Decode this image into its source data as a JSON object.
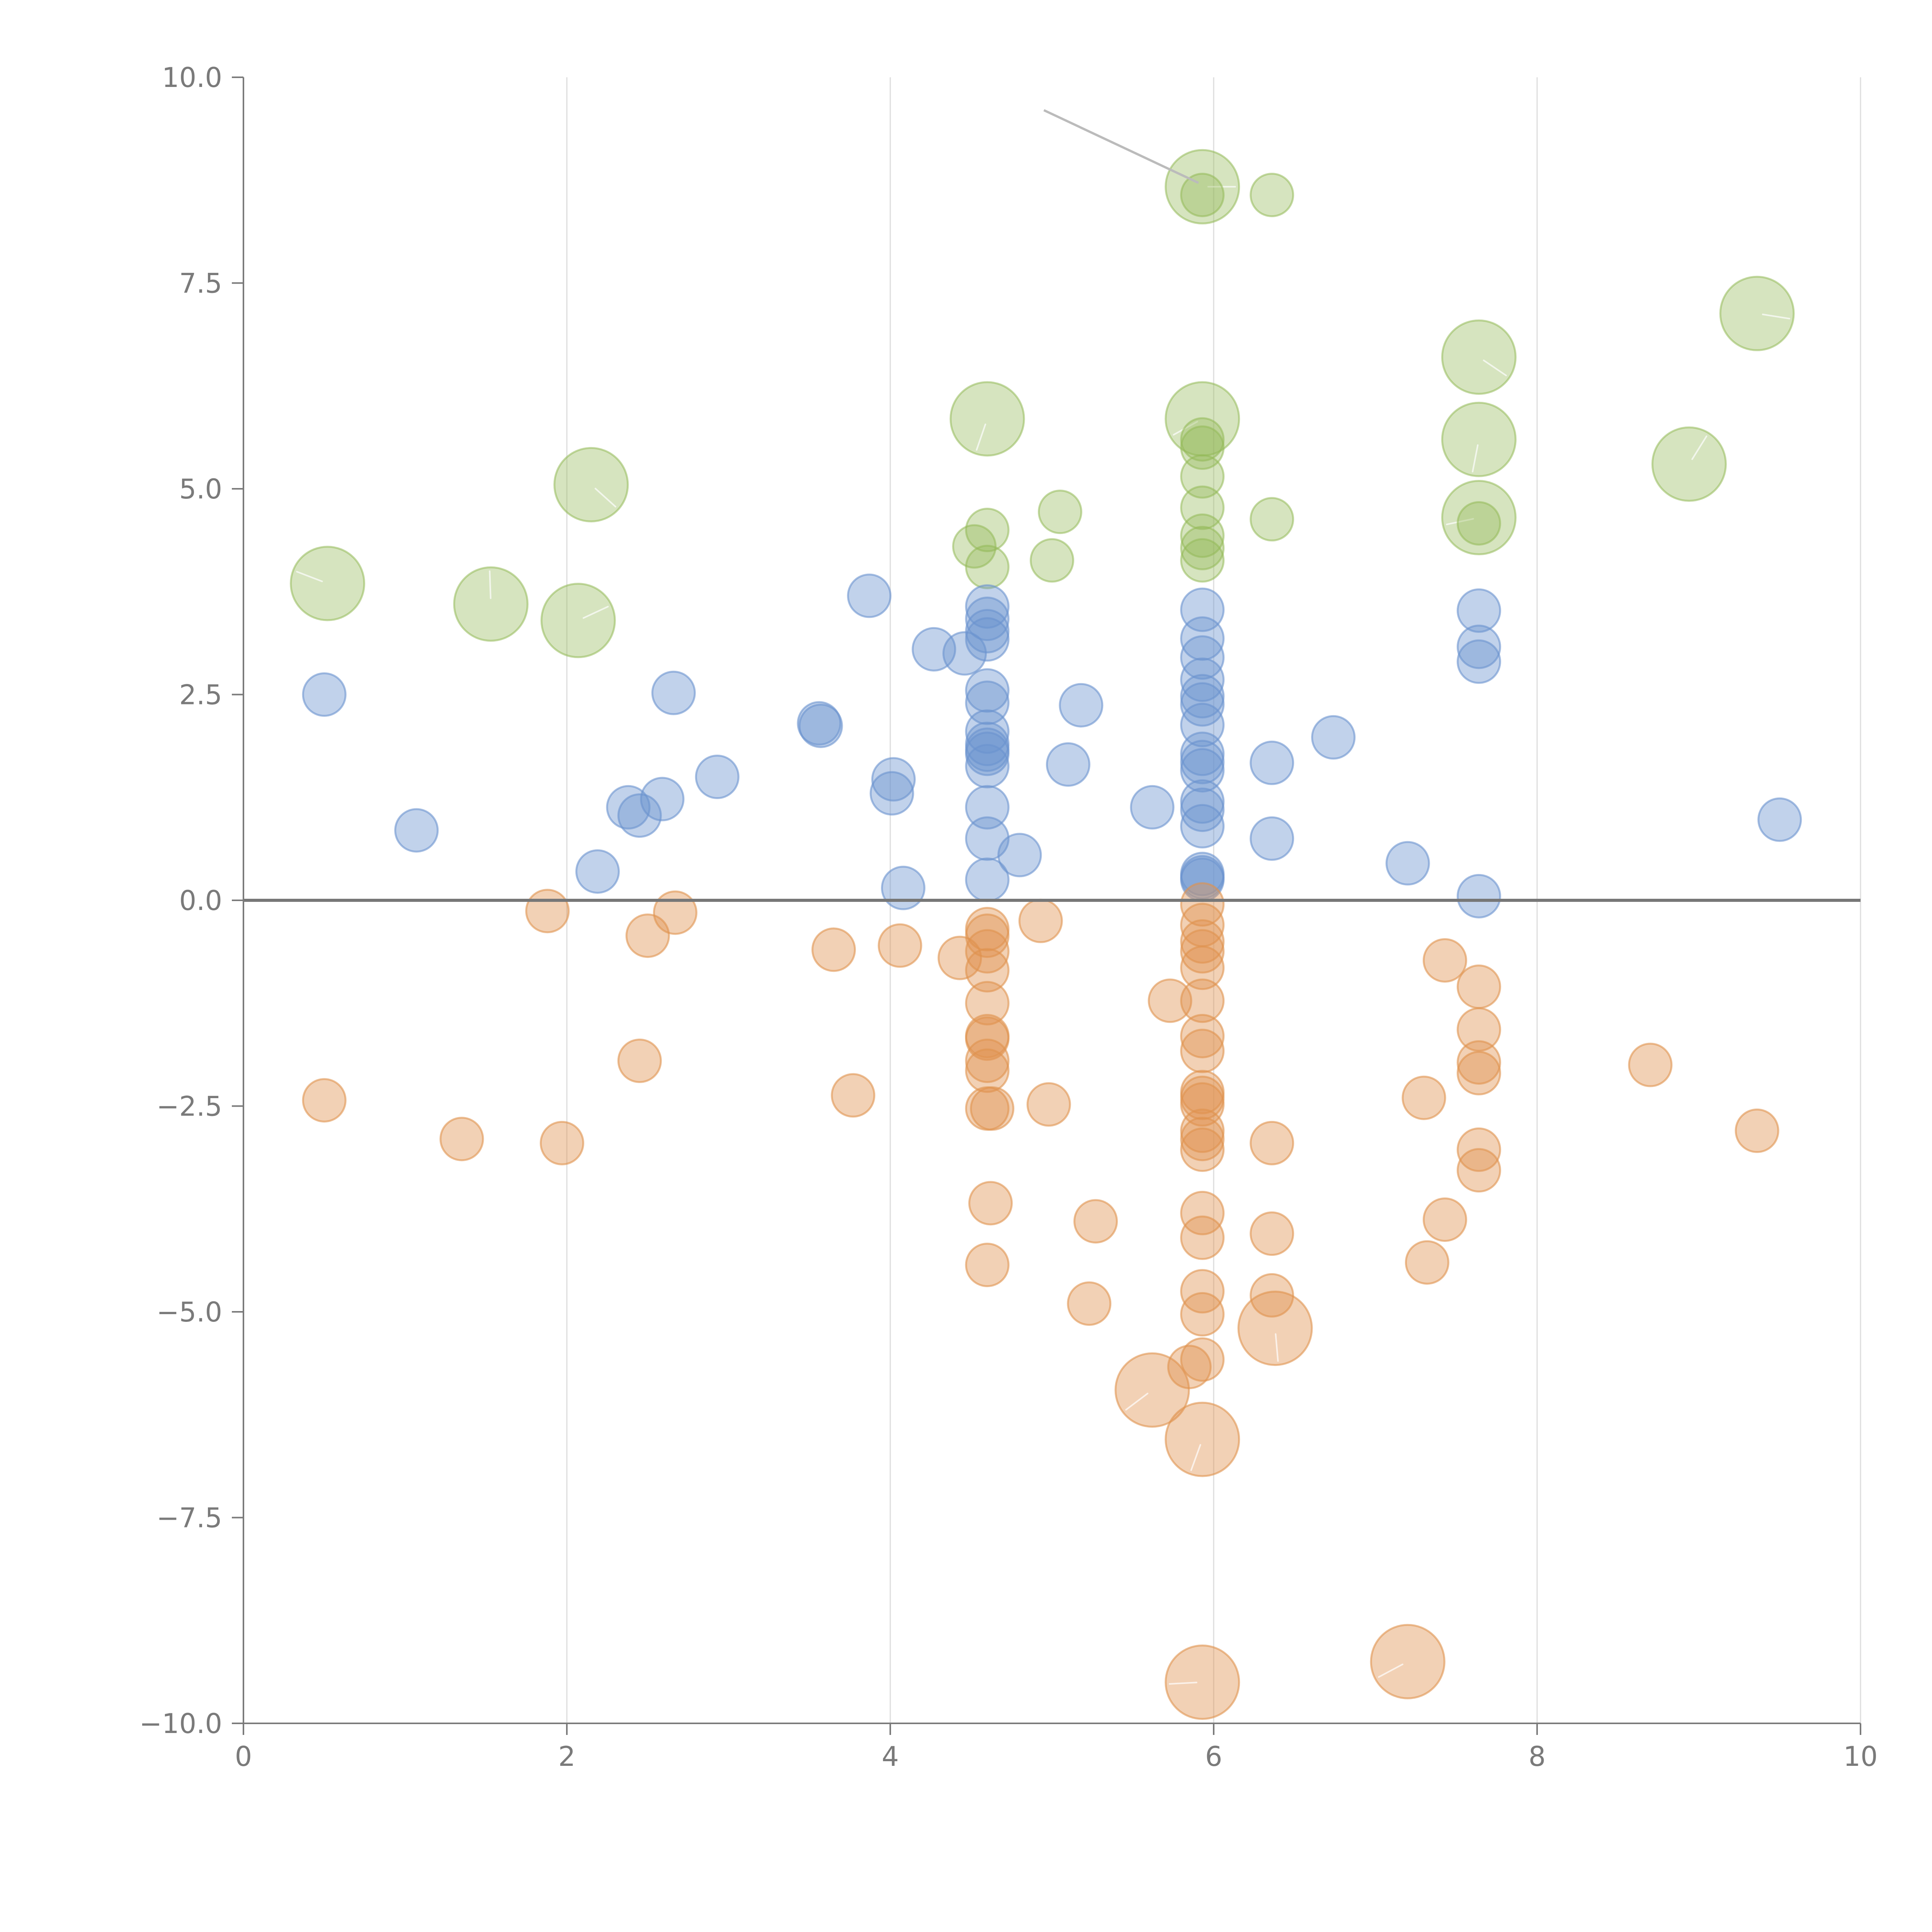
{
  "chart_data": {
    "type": "scatter",
    "title": "",
    "xlabel": "",
    "ylabel": "",
    "xlim": [
      0,
      10
    ],
    "ylim": [
      -10,
      10
    ],
    "x_ticks": [
      "0",
      "2",
      "4",
      "6",
      "8",
      "10"
    ],
    "y_ticks": [
      "10.0",
      "7.5",
      "5.0",
      "2.5",
      "0.0",
      "−2.5",
      "−5.0",
      "−7.5",
      "−10.0"
    ],
    "grid": "vertical",
    "zero_line": true,
    "colors": {
      "positive-large": "#93b958",
      "positive": "#6b93cf",
      "negative": "#e0924f"
    },
    "series": [
      {
        "color": "positive-large",
        "points": [
          [
            5.93,
            8.67,
            3
          ],
          [
            5.93,
            8.57,
            1
          ],
          [
            6.36,
            8.57,
            1
          ],
          [
            0.52,
            3.85,
            3
          ],
          [
            1.53,
            3.6,
            3
          ],
          [
            2.07,
            3.4,
            3
          ],
          [
            2.15,
            5.05,
            3
          ],
          [
            4.6,
            5.85,
            3
          ],
          [
            4.6,
            4.5,
            1
          ],
          [
            4.52,
            4.3,
            1
          ],
          [
            4.6,
            4.05,
            1
          ],
          [
            5.05,
            4.72,
            1
          ],
          [
            5.0,
            4.13,
            1
          ],
          [
            5.93,
            5.85,
            3
          ],
          [
            5.93,
            5.6,
            1
          ],
          [
            5.93,
            5.5,
            1
          ],
          [
            5.93,
            5.15,
            1
          ],
          [
            5.93,
            4.77,
            1
          ],
          [
            5.93,
            4.43,
            1
          ],
          [
            5.93,
            4.28,
            1
          ],
          [
            5.93,
            4.13,
            1
          ],
          [
            6.36,
            4.63,
            1
          ],
          [
            7.64,
            6.6,
            3
          ],
          [
            7.64,
            5.6,
            3
          ],
          [
            7.64,
            4.65,
            3
          ],
          [
            7.64,
            4.58,
            1
          ],
          [
            8.94,
            5.3,
            3
          ],
          [
            9.36,
            7.13,
            3
          ]
        ]
      },
      {
        "color": "positive",
        "points": [
          [
            0.5,
            2.5,
            1
          ],
          [
            1.07,
            0.85,
            1
          ],
          [
            2.19,
            0.35,
            1
          ],
          [
            2.38,
            1.13,
            1
          ],
          [
            2.45,
            1.03,
            1
          ],
          [
            2.59,
            1.23,
            1
          ],
          [
            2.66,
            2.52,
            1
          ],
          [
            2.93,
            1.5,
            1
          ],
          [
            3.56,
            2.15,
            1
          ],
          [
            3.57,
            2.12,
            1
          ],
          [
            3.87,
            3.7,
            1
          ],
          [
            4.02,
            1.47,
            1
          ],
          [
            4.01,
            1.3,
            1
          ],
          [
            4.08,
            0.15,
            1
          ],
          [
            4.27,
            3.05,
            1
          ],
          [
            4.46,
            3.0,
            1
          ],
          [
            4.6,
            3.57,
            1
          ],
          [
            4.6,
            3.42,
            1
          ],
          [
            4.6,
            3.27,
            1
          ],
          [
            4.6,
            3.17,
            1
          ],
          [
            4.6,
            2.55,
            1
          ],
          [
            4.6,
            2.4,
            1
          ],
          [
            4.6,
            2.05,
            1
          ],
          [
            4.6,
            1.9,
            1
          ],
          [
            4.6,
            1.83,
            1
          ],
          [
            4.6,
            1.78,
            1
          ],
          [
            4.6,
            1.63,
            1
          ],
          [
            4.6,
            1.13,
            1
          ],
          [
            4.6,
            0.75,
            1
          ],
          [
            4.6,
            0.25,
            1
          ],
          [
            4.8,
            0.55,
            1
          ],
          [
            5.1,
            1.65,
            1
          ],
          [
            5.18,
            2.37,
            1
          ],
          [
            5.62,
            1.13,
            1
          ],
          [
            5.93,
            3.53,
            1
          ],
          [
            5.93,
            3.18,
            1
          ],
          [
            5.93,
            2.95,
            1
          ],
          [
            5.93,
            2.68,
            1
          ],
          [
            5.93,
            2.48,
            1
          ],
          [
            5.93,
            2.38,
            1
          ],
          [
            5.93,
            2.13,
            1
          ],
          [
            5.93,
            1.78,
            1
          ],
          [
            5.93,
            1.68,
            1
          ],
          [
            5.93,
            1.58,
            1
          ],
          [
            5.93,
            1.2,
            1
          ],
          [
            5.93,
            1.1,
            1
          ],
          [
            5.93,
            0.9,
            1
          ],
          [
            5.93,
            0.32,
            1
          ],
          [
            5.93,
            0.28,
            1
          ],
          [
            5.93,
            0.25,
            1
          ],
          [
            6.36,
            1.67,
            1
          ],
          [
            6.36,
            0.75,
            1
          ],
          [
            6.74,
            1.98,
            1
          ],
          [
            7.2,
            0.45,
            1
          ],
          [
            7.64,
            3.52,
            1
          ],
          [
            7.64,
            3.08,
            1
          ],
          [
            7.64,
            2.9,
            1
          ],
          [
            7.64,
            0.05,
            1
          ],
          [
            9.5,
            0.98,
            1
          ]
        ]
      },
      {
        "color": "negative",
        "points": [
          [
            0.5,
            -2.43,
            1
          ],
          [
            1.35,
            -2.9,
            1
          ],
          [
            1.88,
            -0.13,
            1
          ],
          [
            1.97,
            -2.95,
            1
          ],
          [
            2.45,
            -1.95,
            1
          ],
          [
            2.5,
            -0.43,
            1
          ],
          [
            2.67,
            -0.15,
            1
          ],
          [
            3.65,
            -0.6,
            1
          ],
          [
            3.77,
            -2.37,
            1
          ],
          [
            4.06,
            -0.55,
            1
          ],
          [
            4.43,
            -0.7,
            1
          ],
          [
            4.6,
            -0.35,
            1
          ],
          [
            4.6,
            -0.43,
            1
          ],
          [
            4.6,
            -0.62,
            1
          ],
          [
            4.6,
            -0.85,
            1
          ],
          [
            4.6,
            -1.25,
            1
          ],
          [
            4.6,
            -1.65,
            1
          ],
          [
            4.6,
            -1.68,
            1
          ],
          [
            4.6,
            -1.95,
            1
          ],
          [
            4.6,
            -2.07,
            1
          ],
          [
            4.6,
            -2.53,
            1
          ],
          [
            4.63,
            -2.53,
            1
          ],
          [
            4.62,
            -3.68,
            1
          ],
          [
            4.6,
            -4.43,
            1
          ],
          [
            4.93,
            -0.25,
            1
          ],
          [
            4.98,
            -2.48,
            1
          ],
          [
            5.27,
            -3.9,
            1
          ],
          [
            5.23,
            -4.9,
            1
          ],
          [
            5.73,
            -1.22,
            1
          ],
          [
            5.62,
            -5.95,
            3
          ],
          [
            5.85,
            -5.67,
            1
          ],
          [
            5.93,
            -0.05,
            1
          ],
          [
            5.93,
            -0.3,
            1
          ],
          [
            5.93,
            -0.5,
            1
          ],
          [
            5.93,
            -0.62,
            1
          ],
          [
            5.93,
            -0.82,
            1
          ],
          [
            5.93,
            -1.22,
            1
          ],
          [
            5.93,
            -1.65,
            1
          ],
          [
            5.93,
            -1.83,
            1
          ],
          [
            5.93,
            -2.33,
            1
          ],
          [
            5.93,
            -2.4,
            1
          ],
          [
            5.93,
            -2.48,
            1
          ],
          [
            5.93,
            -2.8,
            1
          ],
          [
            5.93,
            -2.9,
            1
          ],
          [
            5.93,
            -3.03,
            1
          ],
          [
            5.93,
            -3.8,
            1
          ],
          [
            5.93,
            -4.1,
            1
          ],
          [
            5.93,
            -4.75,
            1
          ],
          [
            5.93,
            -5.03,
            1
          ],
          [
            5.93,
            -5.58,
            1
          ],
          [
            5.93,
            -6.55,
            3
          ],
          [
            5.93,
            -9.5,
            3
          ],
          [
            6.36,
            -2.95,
            1
          ],
          [
            6.36,
            -4.05,
            1
          ],
          [
            6.36,
            -4.8,
            1
          ],
          [
            6.38,
            -5.2,
            3
          ],
          [
            7.2,
            -9.25,
            3
          ],
          [
            7.3,
            -2.4,
            1
          ],
          [
            7.32,
            -4.4,
            1
          ],
          [
            7.43,
            -0.73,
            1
          ],
          [
            7.43,
            -3.88,
            1
          ],
          [
            7.64,
            -1.05,
            1
          ],
          [
            7.64,
            -1.57,
            1
          ],
          [
            7.64,
            -1.97,
            1
          ],
          [
            7.64,
            -2.1,
            1
          ],
          [
            7.64,
            -3.03,
            1
          ],
          [
            7.64,
            -3.28,
            1
          ],
          [
            8.7,
            -2.0,
            1
          ],
          [
            9.36,
            -2.8,
            1
          ]
        ]
      }
    ]
  }
}
